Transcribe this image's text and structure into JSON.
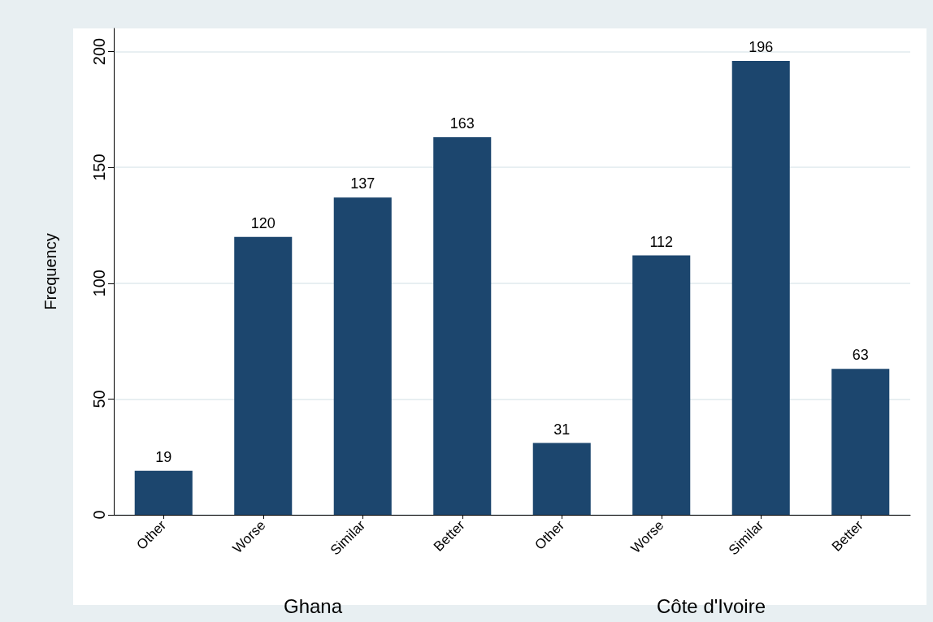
{
  "chart_data": [
    {
      "type": "bar",
      "xlabel": "Ghana",
      "ylabel": "Frequency",
      "categories": [
        "Other",
        "Worse",
        "Similar",
        "Better"
      ],
      "values": [
        19,
        120,
        137,
        163
      ],
      "color": "#1c466e",
      "ylim": [
        0,
        210
      ],
      "yticks": [
        0,
        50,
        100,
        150,
        200
      ],
      "grid": "y",
      "data_labels": true
    },
    {
      "type": "bar",
      "xlabel": "Côte d'Ivoire",
      "categories": [
        "Other",
        "Worse",
        "Similar",
        "Better"
      ],
      "values": [
        31,
        112,
        196,
        63
      ],
      "color": "#1c466e",
      "ylim": [
        0,
        210
      ],
      "yticks": [
        0,
        50,
        100,
        150,
        200
      ],
      "grid": "y",
      "data_labels": true,
      "tick_labels": "x"
    }
  ]
}
